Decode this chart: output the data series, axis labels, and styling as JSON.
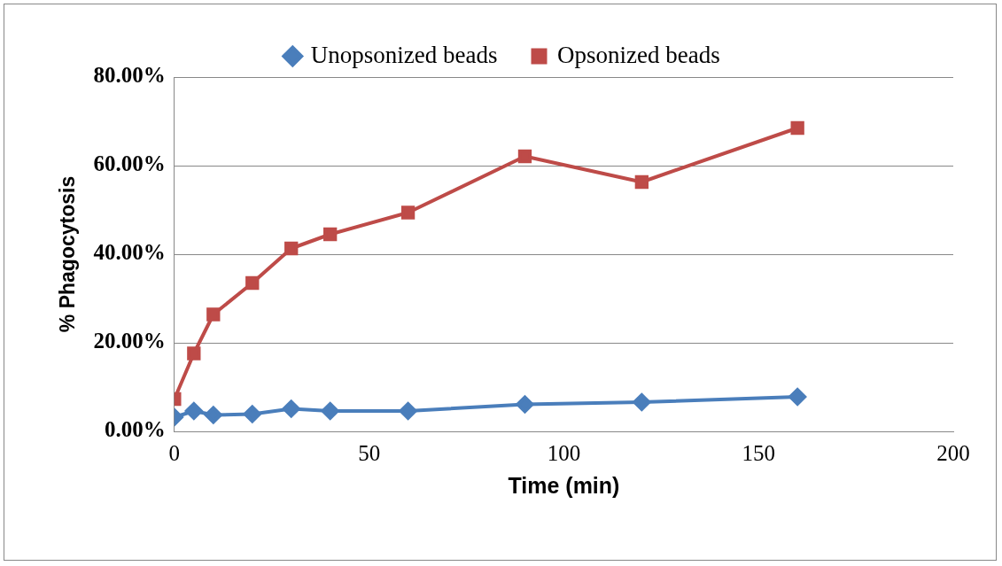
{
  "chart_data": {
    "type": "line",
    "xlabel": "Time (min)",
    "ylabel": "% Phagocytosis",
    "xlim": [
      0,
      200
    ],
    "xticks": [
      0,
      50,
      100,
      150,
      200
    ],
    "ylim": [
      0,
      80
    ],
    "yticks": [
      {
        "value": 0,
        "label": "0.00%"
      },
      {
        "value": 20,
        "label": "20.00%"
      },
      {
        "value": 40,
        "label": "40.00%"
      },
      {
        "value": 60,
        "label": "60.00%"
      },
      {
        "value": 80,
        "label": "80.00%"
      }
    ],
    "grid": "y",
    "legend": "top",
    "line_style": "solid",
    "series": [
      {
        "name": "Unopsonized beads",
        "color": "#4a7ebb",
        "marker": "diamond",
        "x": [
          0,
          5,
          10,
          20,
          30,
          40,
          60,
          90,
          120,
          160
        ],
        "values": [
          3.2,
          4.6,
          3.7,
          3.9,
          5.1,
          4.6,
          4.6,
          6.1,
          6.6,
          7.8
        ]
      },
      {
        "name": "Opsonized beads",
        "color": "#be4b48",
        "marker": "square",
        "x": [
          0,
          5,
          10,
          20,
          30,
          40,
          60,
          90,
          120,
          160
        ],
        "values": [
          7.3,
          17.6,
          26.4,
          33.5,
          41.3,
          44.5,
          49.4,
          62.1,
          56.3,
          68.5
        ]
      }
    ]
  }
}
